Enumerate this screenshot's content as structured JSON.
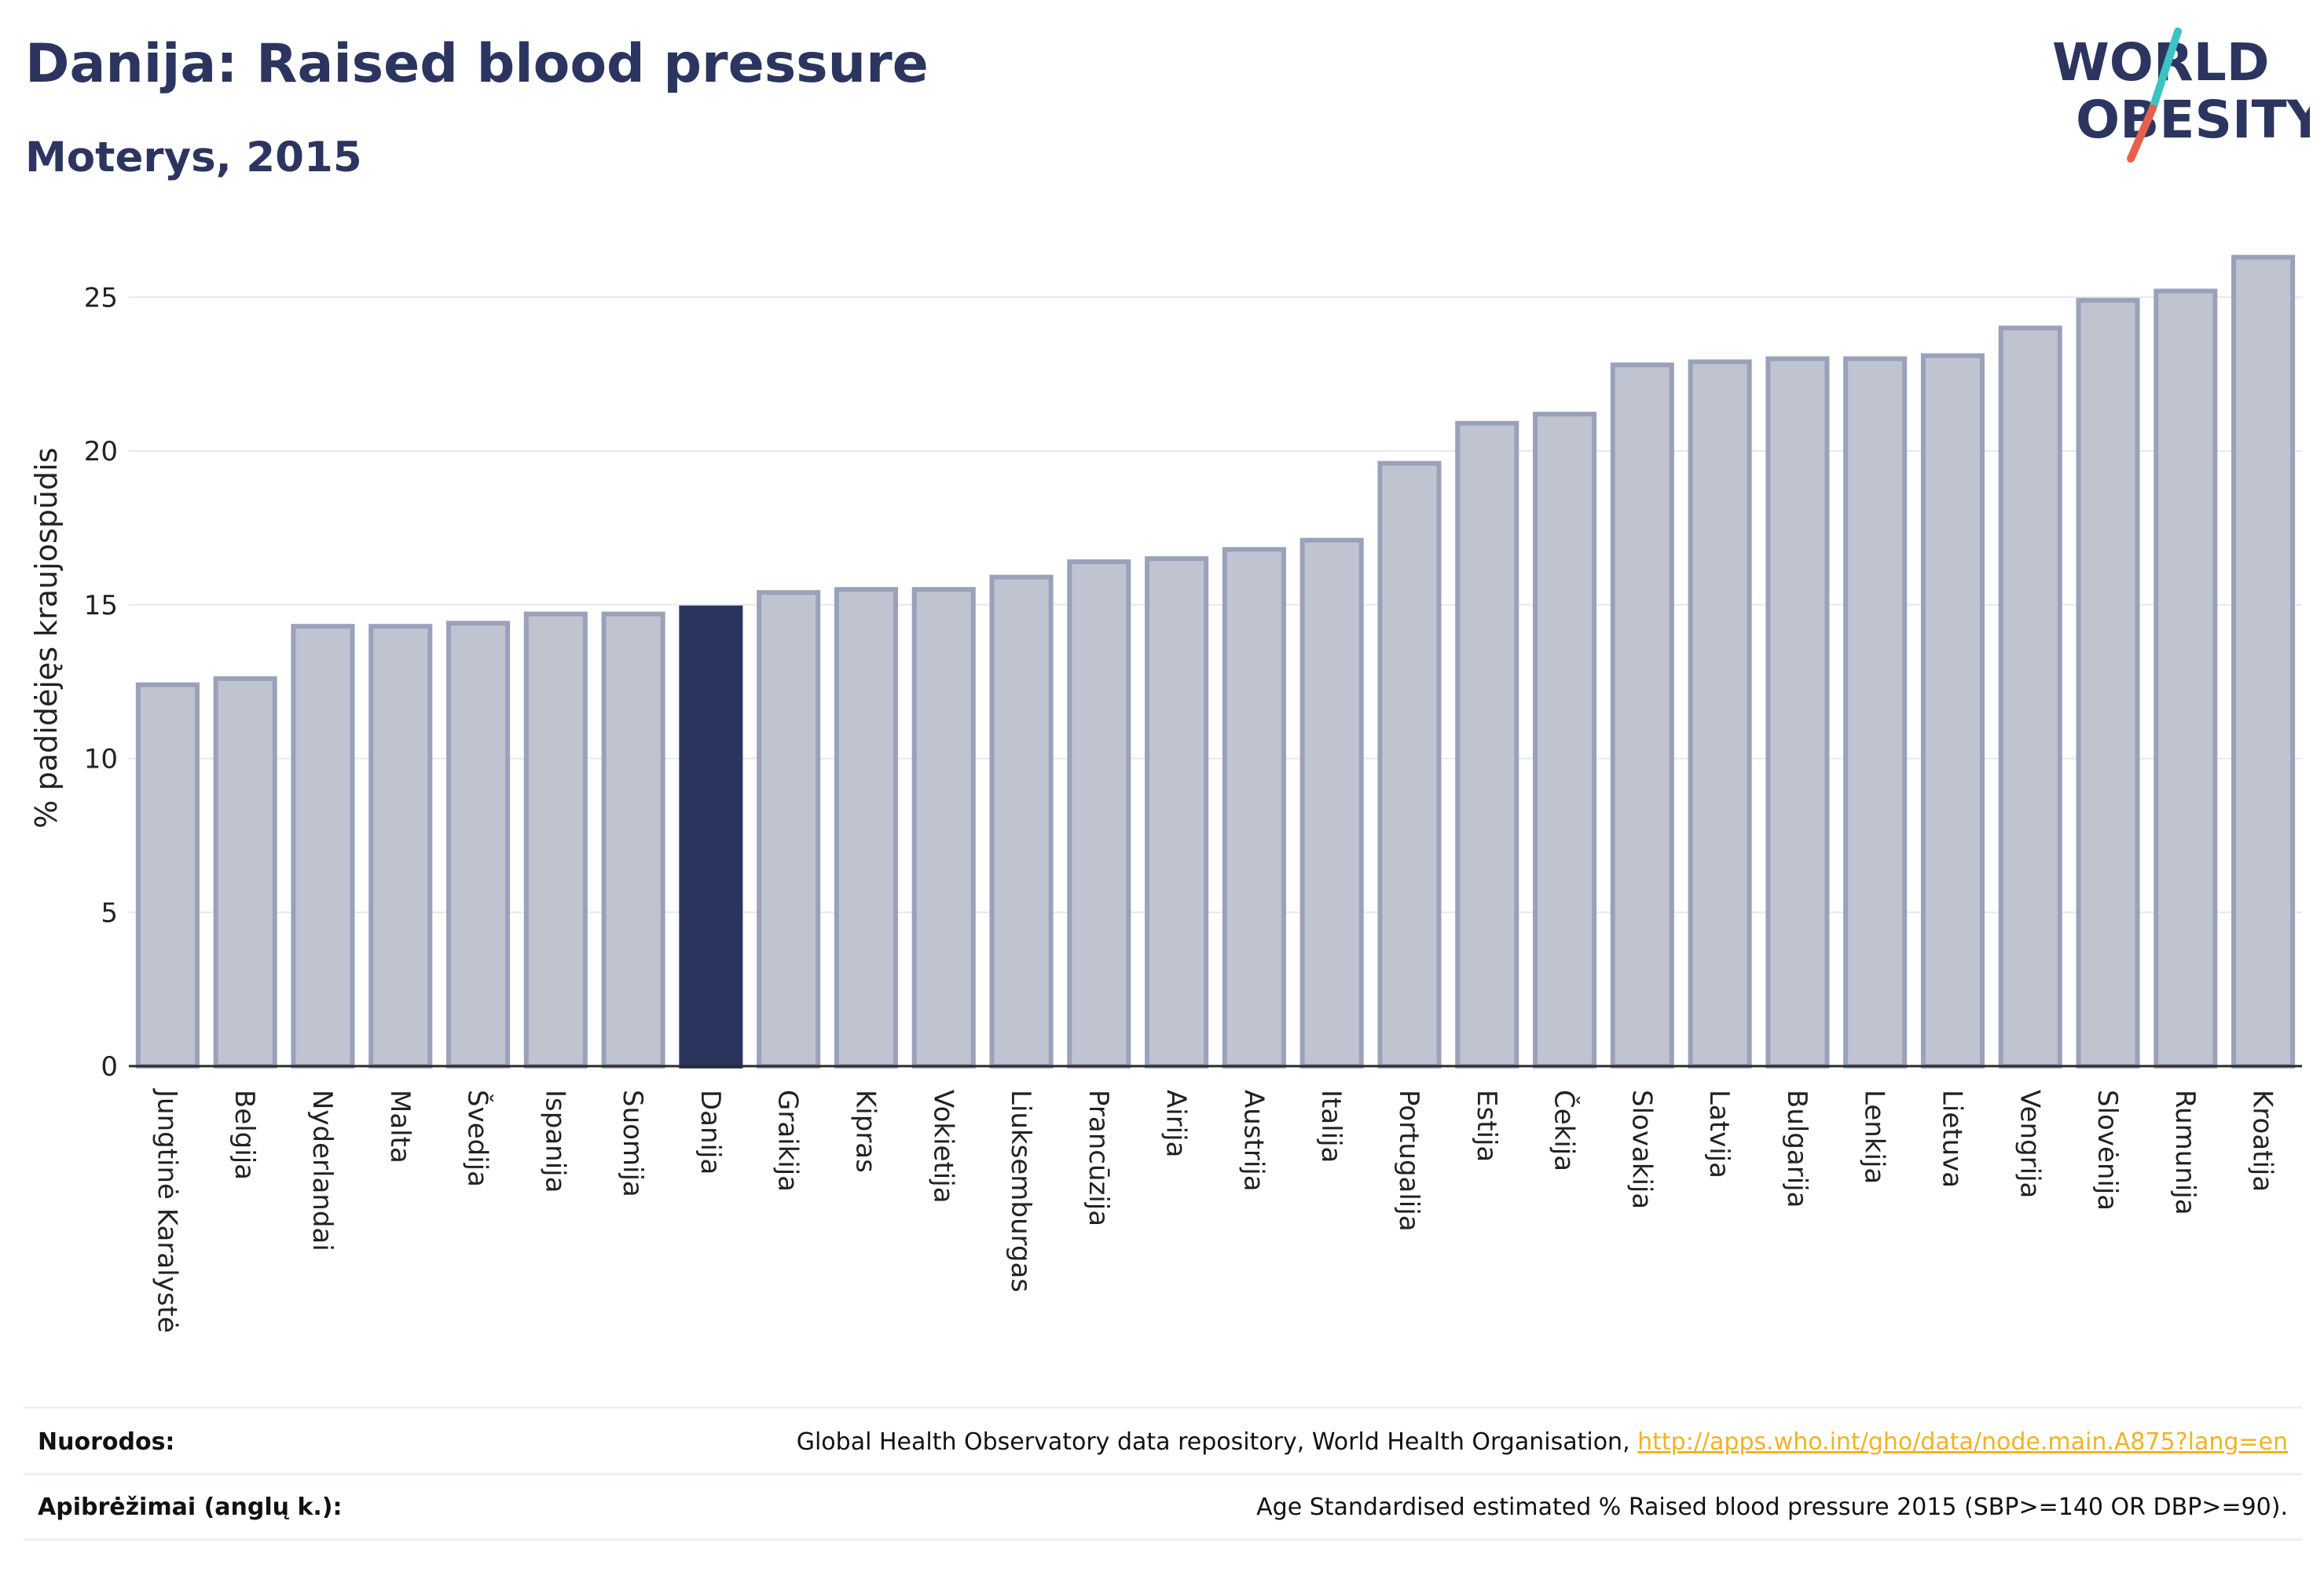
{
  "header": {
    "title": "Danija: Raised blood pressure",
    "subtitle": "Moterys, 2015"
  },
  "logo": {
    "line1": "WORLD",
    "line2": "OBESITY"
  },
  "colors": {
    "bar_default": "#c0c4d1",
    "bar_default_stroke": "#9aa1ba",
    "bar_highlight": "#2b3560",
    "text_dark": "#2b3560",
    "link": "#f0b323",
    "logo_teal": "#3cc3c3",
    "logo_red": "#e8604c"
  },
  "chart_data": {
    "type": "bar",
    "title": "Danija: Raised blood pressure",
    "subtitle": "Moterys, 2015",
    "xlabel": "",
    "ylabel": "% padidėjęs kraujospūdis",
    "ylim": [
      0,
      27
    ],
    "yticks": [
      0,
      5,
      10,
      15,
      20,
      25
    ],
    "grid": true,
    "highlight": "Danija",
    "categories": [
      "Jungtinė Karalystė",
      "Belgija",
      "Nyderlandai",
      "Malta",
      "Švedija",
      "Ispanija",
      "Suomija",
      "Danija",
      "Graikija",
      "Kipras",
      "Vokietija",
      "Liuksemburgas",
      "Prancūzija",
      "Airija",
      "Austrija",
      "Italija",
      "Portugalija",
      "Estija",
      "Čekija",
      "Slovakija",
      "Latvija",
      "Bulgarija",
      "Lenkija",
      "Lietuva",
      "Vengrija",
      "Slovėnija",
      "Rumunija",
      "Kroatija"
    ],
    "values": [
      12.4,
      12.6,
      14.3,
      14.3,
      14.4,
      14.7,
      14.7,
      14.9,
      15.4,
      15.5,
      15.5,
      15.9,
      16.4,
      16.5,
      16.8,
      17.1,
      19.6,
      20.9,
      21.2,
      22.8,
      22.9,
      23.0,
      23.0,
      23.1,
      24.0,
      24.9,
      25.2,
      26.3
    ]
  },
  "footer": {
    "sources_label": "Nuorodos:",
    "sources_text": "Global Health Observatory data repository, World Health Organisation, ",
    "sources_link": "http://apps.who.int/gho/data/node.main.A875?lang=en",
    "definitions_label": "Apibrėžimai (anglų k.):",
    "definitions_text": "Age Standardised estimated % Raised blood pressure 2015 (SBP>=140 OR DBP>=90)."
  }
}
